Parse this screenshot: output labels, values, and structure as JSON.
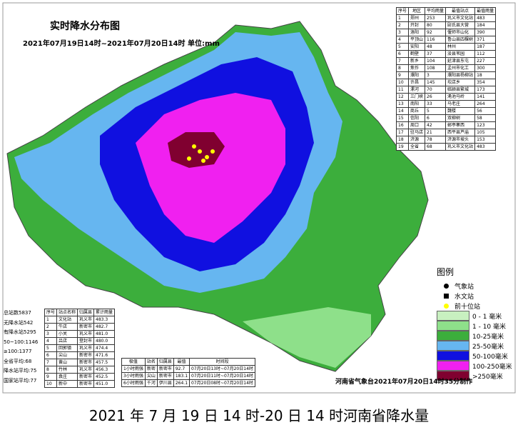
{
  "header": {
    "title": "实时降水分布图",
    "subtitle": "2021年07月19日14时~2021年07月20日14时 单位:mm"
  },
  "city_table": {
    "headers": [
      "序号",
      "地区",
      "平均雨量",
      "最值站点",
      "最值雨量"
    ],
    "rows": [
      [
        "1",
        "郑州",
        "253",
        "巩义市文化站",
        "483"
      ],
      [
        "2",
        "开封",
        "80",
        "尉氏县大营",
        "184"
      ],
      [
        "3",
        "洛阳",
        "92",
        "偃师市山化",
        "390"
      ],
      [
        "4",
        "平顶山",
        "116",
        "鲁山县四棵树",
        "371"
      ],
      [
        "5",
        "安阳",
        "48",
        "林州",
        "187"
      ],
      [
        "6",
        "鹤壁",
        "37",
        "浚县苇园",
        "112"
      ],
      [
        "7",
        "新乡",
        "104",
        "延津县东屯",
        "227"
      ],
      [
        "8",
        "焦作",
        "108",
        "孟州市化工",
        "300"
      ],
      [
        "9",
        "濮阳",
        "3",
        "濮阳县杨柳站",
        "18"
      ],
      [
        "10",
        "许昌",
        "145",
        "坎店乡",
        "354"
      ],
      [
        "11",
        "漯河",
        "70",
        "临颍县繁城",
        "173"
      ],
      [
        "12",
        "三门峡",
        "26",
        "渑池马岭",
        "141"
      ],
      [
        "13",
        "南阳",
        "33",
        "马老庄",
        "264"
      ],
      [
        "14",
        "商丘",
        "5",
        "魏楼",
        "56"
      ],
      [
        "15",
        "信阳",
        "6",
        "双柳树",
        "58"
      ],
      [
        "16",
        "周口",
        "42",
        "郸亭寨西",
        "123"
      ],
      [
        "17",
        "驻马店",
        "21",
        "西平县芦庙",
        "105"
      ],
      [
        "18",
        "济源",
        "78",
        "济源市坡头",
        "153"
      ],
      [
        "19",
        "全省",
        "68",
        "巩义市文化站",
        "483"
      ]
    ]
  },
  "stats": [
    {
      "label": "总站数",
      "value": "5837"
    },
    {
      "label": "无降水站",
      "value": "542"
    },
    {
      "label": "有降水站",
      "value": "5295"
    },
    {
      "label": "50~100:",
      "value": "1146"
    },
    {
      "label": "≥100:",
      "value": "1377"
    },
    {
      "label": "全省平均:",
      "value": "68"
    },
    {
      "label": "降水站平均:",
      "value": "75"
    },
    {
      "label": "国家站平均:",
      "value": "77"
    }
  ],
  "top_table": {
    "headers": [
      "序号",
      "站点名称",
      "归属县",
      "累计雨量"
    ],
    "rows": [
      [
        "1",
        "文化站",
        "巩义市",
        "483.3"
      ],
      [
        "2",
        "牛店",
        "新密市",
        "482.7"
      ],
      [
        "3",
        "小关",
        "巩义市",
        "481.0"
      ],
      [
        "4",
        "吕店",
        "登封市",
        "480.0"
      ],
      [
        "5",
        "回郭镇",
        "巩义市",
        "474.4"
      ],
      [
        "6",
        "尖山",
        "新密市",
        "471.6"
      ],
      [
        "7",
        "黄山",
        "新密市",
        "457.5"
      ],
      [
        "8",
        "竹林",
        "巩义市",
        "456.3"
      ],
      [
        "9",
        "袁庄",
        "新密市",
        "452.5"
      ],
      [
        "10",
        "新中",
        "新密市",
        "451.0"
      ]
    ]
  },
  "extreme_table": {
    "headers": [
      "极值",
      "站名",
      "归属县",
      "最值",
      "时间段"
    ],
    "rows": [
      [
        "1小时雨强",
        "新密",
        "新密市",
        "92.7",
        "07月20日13时~07月20日14时"
      ],
      [
        "3小时雨强",
        "尖山",
        "新密市",
        "183.1",
        "07月20日11时~07月20日14时"
      ],
      [
        "6小时雨强",
        "千河",
        "伊川县",
        "264.1",
        "07月20日08时~07月20日14时"
      ]
    ]
  },
  "legend": {
    "title": "图例",
    "stations": [
      {
        "label": "气象站",
        "color": "#000000"
      },
      {
        "label": "水文站",
        "color": "#000000"
      },
      {
        "label": "前十位站",
        "color": "#ffff00"
      }
    ],
    "ranges": [
      {
        "label": "0 - 1 毫米",
        "color": "#c8f0c0"
      },
      {
        "label": "1 - 10 毫米",
        "color": "#8ee08a"
      },
      {
        "label": "10-25毫米",
        "color": "#3cae3c"
      },
      {
        "label": "25-50毫米",
        "color": "#66b6f0"
      },
      {
        "label": "50-100毫米",
        "color": "#1010e0"
      },
      {
        "label": "100-250毫米",
        "color": "#f020f0"
      },
      {
        "label": ">250毫米",
        "color": "#800030"
      }
    ]
  },
  "credit": "河南省气象台2021年07月20日14时35分制作",
  "caption": "2021 年 7 月 19 日 14 时-20 日 14 时河南省降水量"
}
